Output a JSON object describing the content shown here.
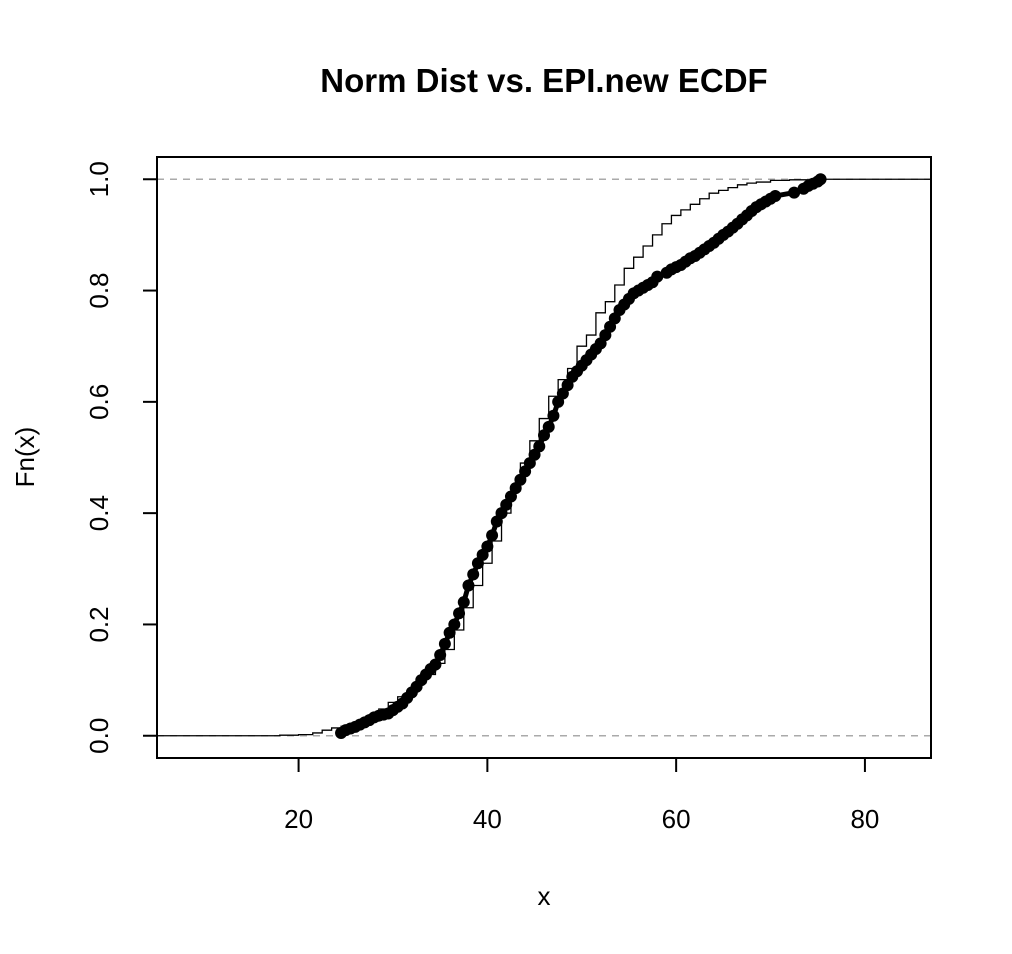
{
  "chart_data": {
    "type": "line",
    "title": "Norm Dist vs. EPI.new ECDF",
    "xlabel": "x",
    "ylabel": "Fn(x)",
    "xlim": [
      5.0,
      87.0
    ],
    "ylim": [
      -0.04,
      1.04
    ],
    "xticks": [
      20,
      40,
      60,
      80
    ],
    "yticks": [
      0.0,
      0.2,
      0.4,
      0.6,
      0.8,
      1.0
    ],
    "xtick_labels": [
      "20",
      "40",
      "60",
      "80"
    ],
    "ytick_labels": [
      "0.0",
      "0.2",
      "0.4",
      "0.6",
      "0.8",
      "1.0"
    ],
    "reference_lines": [
      0.0,
      1.0
    ],
    "grid": false,
    "colors": {
      "series": "#000000",
      "reference": "#aaaaaa",
      "frame": "#000000"
    },
    "series": [
      {
        "kind": "thin-step-line",
        "x": [
          5.0,
          15.0,
          18.0,
          20.0,
          21.5,
          22.5,
          23.5,
          24.5,
          25.5,
          26.5,
          27.5,
          28.5,
          29.5,
          30.5,
          31.5,
          32.5,
          33.5,
          34.5,
          35.5,
          36.5,
          37.5,
          38.5,
          39.5,
          40.5,
          41.5,
          42.5,
          43.5,
          44.5,
          45.5,
          46.5,
          47.5,
          48.5,
          49.5,
          50.5,
          51.5,
          52.5,
          53.5,
          54.5,
          55.5,
          56.5,
          57.5,
          58.5,
          59.5,
          60.5,
          61.5,
          62.5,
          63.5,
          64.5,
          65.5,
          66.5,
          67.5,
          68.5,
          70.0,
          72.0,
          75.0,
          80.0,
          87.0
        ],
        "y": [
          0.0,
          0.0,
          0.001,
          0.002,
          0.005,
          0.01,
          0.014,
          0.017,
          0.021,
          0.028,
          0.038,
          0.048,
          0.06,
          0.07,
          0.08,
          0.095,
          0.11,
          0.13,
          0.155,
          0.19,
          0.23,
          0.27,
          0.31,
          0.35,
          0.4,
          0.44,
          0.49,
          0.53,
          0.57,
          0.61,
          0.64,
          0.66,
          0.7,
          0.72,
          0.76,
          0.78,
          0.81,
          0.84,
          0.86,
          0.88,
          0.9,
          0.92,
          0.935,
          0.945,
          0.955,
          0.965,
          0.975,
          0.98,
          0.985,
          0.99,
          0.993,
          0.995,
          0.998,
          0.999,
          1.0,
          1.0,
          1.0
        ]
      },
      {
        "kind": "ecdf-points",
        "x": [
          24.5,
          25.0,
          25.5,
          26.0,
          26.5,
          27.0,
          27.5,
          28.0,
          28.5,
          29.0,
          29.5,
          30.0,
          30.5,
          31.0,
          31.5,
          32.0,
          32.5,
          33.0,
          33.5,
          34.0,
          34.5,
          35.0,
          35.5,
          36.0,
          36.5,
          37.0,
          37.5,
          38.0,
          38.5,
          39.0,
          39.5,
          40.0,
          40.5,
          41.0,
          41.5,
          42.0,
          42.5,
          43.0,
          43.5,
          44.0,
          44.5,
          45.0,
          45.5,
          46.0,
          46.5,
          47.0,
          47.5,
          48.0,
          48.5,
          49.0,
          49.5,
          50.0,
          50.5,
          51.0,
          51.5,
          52.0,
          52.5,
          53.0,
          53.5,
          54.0,
          54.5,
          55.0,
          55.5,
          56.0,
          56.5,
          57.0,
          57.5,
          58.0,
          59.0,
          59.5,
          60.0,
          60.5,
          61.0,
          61.5,
          62.0,
          62.5,
          63.0,
          63.5,
          64.0,
          64.5,
          65.0,
          65.5,
          66.0,
          66.5,
          67.0,
          67.5,
          68.0,
          68.5,
          69.0,
          69.5,
          70.0,
          70.5,
          72.5,
          73.5,
          74.0,
          74.5,
          75.0,
          75.3
        ],
        "y": [
          0.005,
          0.01,
          0.013,
          0.016,
          0.02,
          0.024,
          0.028,
          0.033,
          0.036,
          0.038,
          0.04,
          0.046,
          0.052,
          0.058,
          0.068,
          0.078,
          0.088,
          0.1,
          0.11,
          0.12,
          0.128,
          0.145,
          0.165,
          0.185,
          0.2,
          0.22,
          0.24,
          0.27,
          0.29,
          0.31,
          0.325,
          0.34,
          0.36,
          0.385,
          0.4,
          0.415,
          0.43,
          0.445,
          0.46,
          0.475,
          0.49,
          0.505,
          0.52,
          0.54,
          0.555,
          0.575,
          0.6,
          0.615,
          0.63,
          0.645,
          0.655,
          0.665,
          0.675,
          0.685,
          0.695,
          0.705,
          0.72,
          0.735,
          0.75,
          0.765,
          0.775,
          0.785,
          0.795,
          0.8,
          0.805,
          0.81,
          0.815,
          0.825,
          0.832,
          0.838,
          0.842,
          0.846,
          0.852,
          0.858,
          0.862,
          0.868,
          0.874,
          0.88,
          0.886,
          0.893,
          0.9,
          0.906,
          0.913,
          0.92,
          0.928,
          0.935,
          0.943,
          0.95,
          0.955,
          0.96,
          0.965,
          0.97,
          0.976,
          0.983,
          0.988,
          0.992,
          0.996,
          1.0
        ]
      }
    ]
  }
}
